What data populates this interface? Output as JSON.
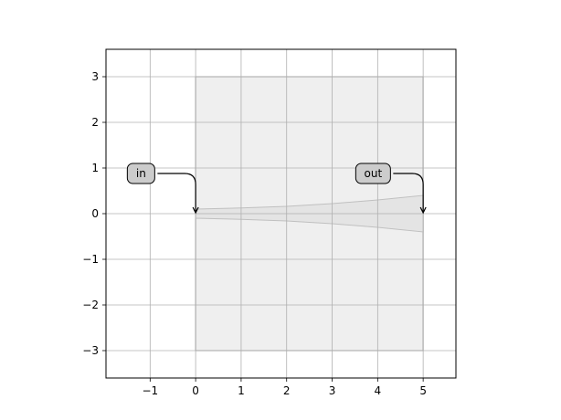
{
  "chart_data": {
    "type": "diagram-plot",
    "xlim": [
      -1.97,
      5.72
    ],
    "ylim": [
      -3.6,
      3.6
    ],
    "grid": true,
    "xticks": [
      -1,
      0,
      1,
      2,
      3,
      4,
      5
    ],
    "yticks": [
      -3,
      -2,
      -1,
      0,
      1,
      2,
      3
    ],
    "xtick_labels": [
      "−1",
      "0",
      "1",
      "2",
      "3",
      "4",
      "5"
    ],
    "ytick_labels": [
      "−3",
      "−2",
      "−1",
      "0",
      "1",
      "2",
      "3"
    ],
    "bbox_rect": {
      "x0": 0,
      "x1": 5,
      "y0": -3,
      "y1": 3
    },
    "taper": {
      "x": [
        0,
        1,
        2,
        3,
        4,
        5
      ],
      "half_width": [
        0.1,
        0.125,
        0.16,
        0.22,
        0.3,
        0.4
      ]
    },
    "ports": [
      {
        "label": "in",
        "x": 0,
        "y": 0,
        "text_x": -1.2,
        "text_y": 0.88
      },
      {
        "label": "out",
        "x": 5,
        "y": 0,
        "text_x": 3.9,
        "text_y": 0.88
      }
    ],
    "colors": {
      "rect_fill": "#efefef",
      "rect_edge": "#808080",
      "taper_fill": "#e4e4e4",
      "taper_edge": "#c0c0c0",
      "label_box": "#cccccc",
      "grid": "#b0b0b0"
    }
  }
}
